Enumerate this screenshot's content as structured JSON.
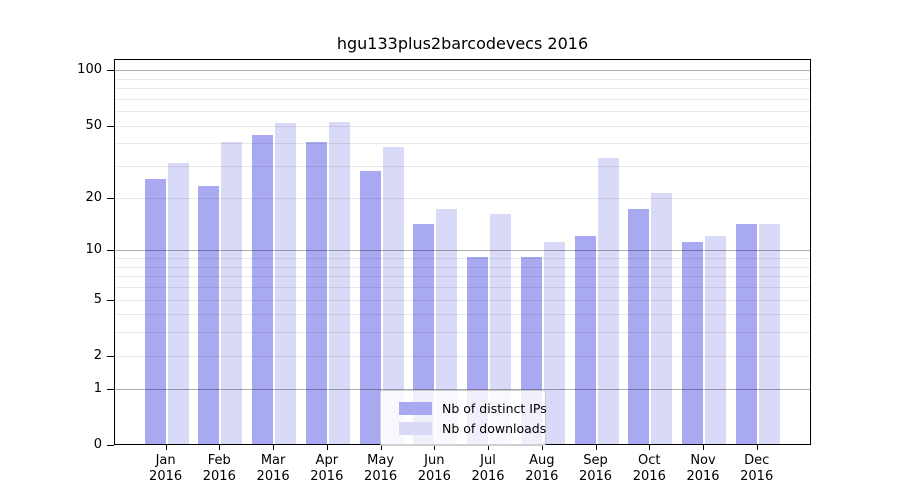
{
  "title": "hgu133plus2barcodevecs 2016",
  "legend": {
    "items": [
      {
        "label": "Nb of distinct IPs",
        "color": "#a9a9f2"
      },
      {
        "label": "Nb of downloads",
        "color": "#d9d9f8"
      }
    ]
  },
  "y_axis": {
    "ticks": [
      {
        "label": "100",
        "value": 100
      },
      {
        "label": "50",
        "value": 50
      },
      {
        "label": "20",
        "value": 20
      },
      {
        "label": "10",
        "value": 10
      },
      {
        "label": "5",
        "value": 5
      },
      {
        "label": "2",
        "value": 2
      },
      {
        "label": "1",
        "value": 1
      },
      {
        "label": "0",
        "value": 0
      }
    ]
  },
  "x_axis": {
    "months": [
      "Jan",
      "Feb",
      "Mar",
      "Apr",
      "May",
      "Jun",
      "Jul",
      "Aug",
      "Sep",
      "Oct",
      "Nov",
      "Dec"
    ],
    "year": "2016"
  },
  "chart_data": {
    "type": "bar",
    "scale": "log1p",
    "title": "hgu133plus2barcodevecs 2016",
    "categories": [
      "Jan 2016",
      "Feb 2016",
      "Mar 2016",
      "Apr 2016",
      "May 2016",
      "Jun 2016",
      "Jul 2016",
      "Aug 2016",
      "Sep 2016",
      "Oct 2016",
      "Nov 2016",
      "Dec 2016"
    ],
    "series": [
      {
        "name": "Nb of distinct IPs",
        "color": "#a9a9f2",
        "values": [
          25,
          23,
          44,
          40,
          28,
          14,
          9,
          9,
          12,
          17,
          11,
          14
        ]
      },
      {
        "name": "Nb of downloads",
        "color": "#d9d9f8",
        "values": [
          31,
          40,
          51,
          52,
          38,
          17,
          16,
          11,
          33,
          21,
          12,
          14
        ]
      }
    ],
    "ylim": [
      0,
      100
    ],
    "y_tick_values": [
      0,
      1,
      2,
      5,
      10,
      20,
      50,
      100
    ],
    "gridlines": {
      "major": [
        1,
        10,
        100
      ],
      "minor": [
        2,
        3,
        4,
        5,
        6,
        7,
        8,
        9,
        20,
        30,
        40,
        50,
        60,
        70,
        80,
        90
      ]
    },
    "grid": true,
    "legend_position": "bottom-center"
  }
}
